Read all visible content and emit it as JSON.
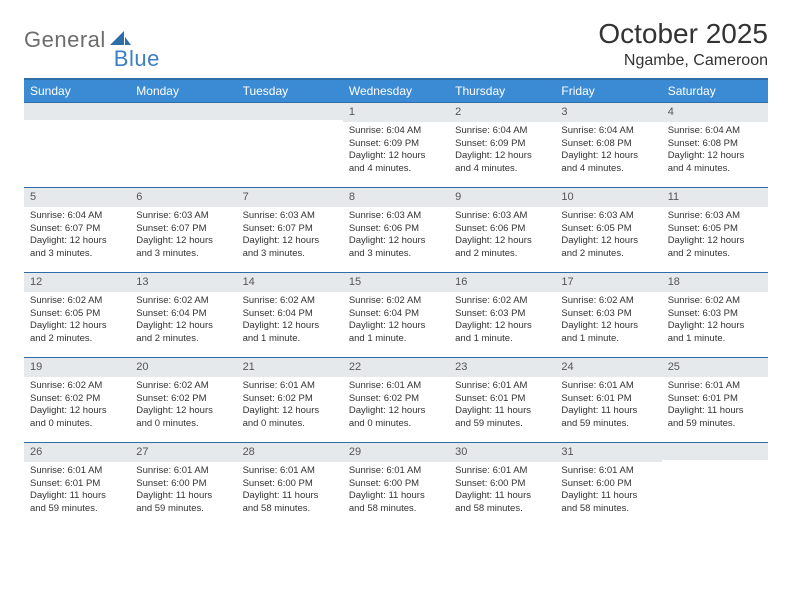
{
  "logo": {
    "general": "General",
    "blue": "Blue"
  },
  "title": "October 2025",
  "location": "Ngambe, Cameroon",
  "colors": {
    "header_bar": "#3b8bd4",
    "border": "#2f6da8",
    "daynum_bg": "#e6e9ec",
    "text": "#333333",
    "logo_gray": "#6d6d6d",
    "logo_blue": "#3b7fc4"
  },
  "day_headers": [
    "Sunday",
    "Monday",
    "Tuesday",
    "Wednesday",
    "Thursday",
    "Friday",
    "Saturday"
  ],
  "weeks": [
    [
      {
        "day": "",
        "sunrise": "",
        "sunset": "",
        "daylight1": "",
        "daylight2": ""
      },
      {
        "day": "",
        "sunrise": "",
        "sunset": "",
        "daylight1": "",
        "daylight2": ""
      },
      {
        "day": "",
        "sunrise": "",
        "sunset": "",
        "daylight1": "",
        "daylight2": ""
      },
      {
        "day": "1",
        "sunrise": "Sunrise: 6:04 AM",
        "sunset": "Sunset: 6:09 PM",
        "daylight1": "Daylight: 12 hours",
        "daylight2": "and 4 minutes."
      },
      {
        "day": "2",
        "sunrise": "Sunrise: 6:04 AM",
        "sunset": "Sunset: 6:09 PM",
        "daylight1": "Daylight: 12 hours",
        "daylight2": "and 4 minutes."
      },
      {
        "day": "3",
        "sunrise": "Sunrise: 6:04 AM",
        "sunset": "Sunset: 6:08 PM",
        "daylight1": "Daylight: 12 hours",
        "daylight2": "and 4 minutes."
      },
      {
        "day": "4",
        "sunrise": "Sunrise: 6:04 AM",
        "sunset": "Sunset: 6:08 PM",
        "daylight1": "Daylight: 12 hours",
        "daylight2": "and 4 minutes."
      }
    ],
    [
      {
        "day": "5",
        "sunrise": "Sunrise: 6:04 AM",
        "sunset": "Sunset: 6:07 PM",
        "daylight1": "Daylight: 12 hours",
        "daylight2": "and 3 minutes."
      },
      {
        "day": "6",
        "sunrise": "Sunrise: 6:03 AM",
        "sunset": "Sunset: 6:07 PM",
        "daylight1": "Daylight: 12 hours",
        "daylight2": "and 3 minutes."
      },
      {
        "day": "7",
        "sunrise": "Sunrise: 6:03 AM",
        "sunset": "Sunset: 6:07 PM",
        "daylight1": "Daylight: 12 hours",
        "daylight2": "and 3 minutes."
      },
      {
        "day": "8",
        "sunrise": "Sunrise: 6:03 AM",
        "sunset": "Sunset: 6:06 PM",
        "daylight1": "Daylight: 12 hours",
        "daylight2": "and 3 minutes."
      },
      {
        "day": "9",
        "sunrise": "Sunrise: 6:03 AM",
        "sunset": "Sunset: 6:06 PM",
        "daylight1": "Daylight: 12 hours",
        "daylight2": "and 2 minutes."
      },
      {
        "day": "10",
        "sunrise": "Sunrise: 6:03 AM",
        "sunset": "Sunset: 6:05 PM",
        "daylight1": "Daylight: 12 hours",
        "daylight2": "and 2 minutes."
      },
      {
        "day": "11",
        "sunrise": "Sunrise: 6:03 AM",
        "sunset": "Sunset: 6:05 PM",
        "daylight1": "Daylight: 12 hours",
        "daylight2": "and 2 minutes."
      }
    ],
    [
      {
        "day": "12",
        "sunrise": "Sunrise: 6:02 AM",
        "sunset": "Sunset: 6:05 PM",
        "daylight1": "Daylight: 12 hours",
        "daylight2": "and 2 minutes."
      },
      {
        "day": "13",
        "sunrise": "Sunrise: 6:02 AM",
        "sunset": "Sunset: 6:04 PM",
        "daylight1": "Daylight: 12 hours",
        "daylight2": "and 2 minutes."
      },
      {
        "day": "14",
        "sunrise": "Sunrise: 6:02 AM",
        "sunset": "Sunset: 6:04 PM",
        "daylight1": "Daylight: 12 hours",
        "daylight2": "and 1 minute."
      },
      {
        "day": "15",
        "sunrise": "Sunrise: 6:02 AM",
        "sunset": "Sunset: 6:04 PM",
        "daylight1": "Daylight: 12 hours",
        "daylight2": "and 1 minute."
      },
      {
        "day": "16",
        "sunrise": "Sunrise: 6:02 AM",
        "sunset": "Sunset: 6:03 PM",
        "daylight1": "Daylight: 12 hours",
        "daylight2": "and 1 minute."
      },
      {
        "day": "17",
        "sunrise": "Sunrise: 6:02 AM",
        "sunset": "Sunset: 6:03 PM",
        "daylight1": "Daylight: 12 hours",
        "daylight2": "and 1 minute."
      },
      {
        "day": "18",
        "sunrise": "Sunrise: 6:02 AM",
        "sunset": "Sunset: 6:03 PM",
        "daylight1": "Daylight: 12 hours",
        "daylight2": "and 1 minute."
      }
    ],
    [
      {
        "day": "19",
        "sunrise": "Sunrise: 6:02 AM",
        "sunset": "Sunset: 6:02 PM",
        "daylight1": "Daylight: 12 hours",
        "daylight2": "and 0 minutes."
      },
      {
        "day": "20",
        "sunrise": "Sunrise: 6:02 AM",
        "sunset": "Sunset: 6:02 PM",
        "daylight1": "Daylight: 12 hours",
        "daylight2": "and 0 minutes."
      },
      {
        "day": "21",
        "sunrise": "Sunrise: 6:01 AM",
        "sunset": "Sunset: 6:02 PM",
        "daylight1": "Daylight: 12 hours",
        "daylight2": "and 0 minutes."
      },
      {
        "day": "22",
        "sunrise": "Sunrise: 6:01 AM",
        "sunset": "Sunset: 6:02 PM",
        "daylight1": "Daylight: 12 hours",
        "daylight2": "and 0 minutes."
      },
      {
        "day": "23",
        "sunrise": "Sunrise: 6:01 AM",
        "sunset": "Sunset: 6:01 PM",
        "daylight1": "Daylight: 11 hours",
        "daylight2": "and 59 minutes."
      },
      {
        "day": "24",
        "sunrise": "Sunrise: 6:01 AM",
        "sunset": "Sunset: 6:01 PM",
        "daylight1": "Daylight: 11 hours",
        "daylight2": "and 59 minutes."
      },
      {
        "day": "25",
        "sunrise": "Sunrise: 6:01 AM",
        "sunset": "Sunset: 6:01 PM",
        "daylight1": "Daylight: 11 hours",
        "daylight2": "and 59 minutes."
      }
    ],
    [
      {
        "day": "26",
        "sunrise": "Sunrise: 6:01 AM",
        "sunset": "Sunset: 6:01 PM",
        "daylight1": "Daylight: 11 hours",
        "daylight2": "and 59 minutes."
      },
      {
        "day": "27",
        "sunrise": "Sunrise: 6:01 AM",
        "sunset": "Sunset: 6:00 PM",
        "daylight1": "Daylight: 11 hours",
        "daylight2": "and 59 minutes."
      },
      {
        "day": "28",
        "sunrise": "Sunrise: 6:01 AM",
        "sunset": "Sunset: 6:00 PM",
        "daylight1": "Daylight: 11 hours",
        "daylight2": "and 58 minutes."
      },
      {
        "day": "29",
        "sunrise": "Sunrise: 6:01 AM",
        "sunset": "Sunset: 6:00 PM",
        "daylight1": "Daylight: 11 hours",
        "daylight2": "and 58 minutes."
      },
      {
        "day": "30",
        "sunrise": "Sunrise: 6:01 AM",
        "sunset": "Sunset: 6:00 PM",
        "daylight1": "Daylight: 11 hours",
        "daylight2": "and 58 minutes."
      },
      {
        "day": "31",
        "sunrise": "Sunrise: 6:01 AM",
        "sunset": "Sunset: 6:00 PM",
        "daylight1": "Daylight: 11 hours",
        "daylight2": "and 58 minutes."
      },
      {
        "day": "",
        "sunrise": "",
        "sunset": "",
        "daylight1": "",
        "daylight2": ""
      }
    ]
  ]
}
